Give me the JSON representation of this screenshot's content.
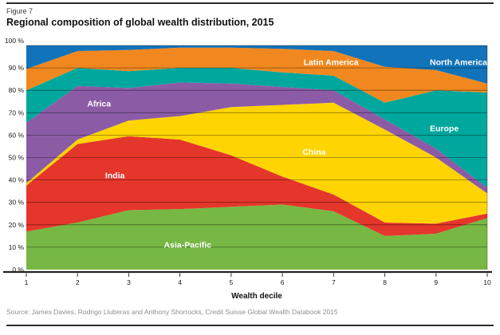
{
  "figure": {
    "label": "Figure 7",
    "title": "Regional composition of global wealth distribution, 2015"
  },
  "source_line": "Source: James Davies, Rodrigo Lluberas and Anthony Shorrocks, Credit Suisse Global Wealth Databook 2015",
  "chart_data": {
    "type": "area",
    "stacked": true,
    "grid": "horizontal",
    "x": [
      1,
      2,
      3,
      4,
      5,
      6,
      7,
      8,
      9,
      10
    ],
    "xlabel": "Wealth decile",
    "ylim": [
      0,
      100
    ],
    "y_tick_labels": [
      "100 %",
      "90 %",
      "80 %",
      "70 %",
      "60 %",
      "50 %",
      "40 %",
      "30 %",
      "20 %",
      "10 %",
      "0 %"
    ],
    "unit": "percent of decile wealth",
    "series": [
      {
        "name": "Asia-Pacific",
        "color": "#76B843",
        "values": [
          17,
          21,
          26.5,
          27,
          28,
          29,
          26,
          15,
          16,
          23
        ]
      },
      {
        "name": "India",
        "color": "#E5362B",
        "values": [
          20.5,
          35,
          33,
          31,
          23,
          12.5,
          7.5,
          6,
          4.5,
          2
        ]
      },
      {
        "name": "China",
        "color": "#FFD400",
        "values": [
          1,
          2,
          7,
          10.5,
          21.5,
          32,
          41,
          41.5,
          29.5,
          9
        ]
      },
      {
        "name": "Africa",
        "color": "#8C5BA6",
        "values": [
          27,
          24,
          14.5,
          15,
          10.5,
          8,
          5.5,
          4.5,
          4,
          2.5
        ]
      },
      {
        "name": "Europe",
        "color": "#00A79D",
        "values": [
          14.5,
          8,
          7.5,
          6.5,
          7,
          6.5,
          6.5,
          7.5,
          26,
          42.5
        ]
      },
      {
        "name": "Latin America",
        "color": "#F0881F",
        "values": [
          9.5,
          7.5,
          9.5,
          9,
          9,
          10.5,
          11,
          16,
          9,
          4
        ]
      },
      {
        "name": "North America",
        "color": "#1173B9",
        "values": [
          10.5,
          2.5,
          2,
          1,
          1,
          1.5,
          2.5,
          9.5,
          11,
          17
        ]
      }
    ],
    "annotations": [
      {
        "text": "Africa",
        "x": 2.42,
        "y": 74.0
      },
      {
        "text": "India",
        "x": 2.73,
        "y": 42.0
      },
      {
        "text": "China",
        "x": 6.62,
        "y": 52.5
      },
      {
        "text": "Asia-Pacific",
        "x": 4.15,
        "y": 11.0
      },
      {
        "text": "Latin America",
        "x": 6.95,
        "y": 92.5
      },
      {
        "text": "Europe",
        "x": 9.16,
        "y": 63.0
      },
      {
        "text": "North America",
        "x": 9.44,
        "y": 92.5
      }
    ]
  }
}
